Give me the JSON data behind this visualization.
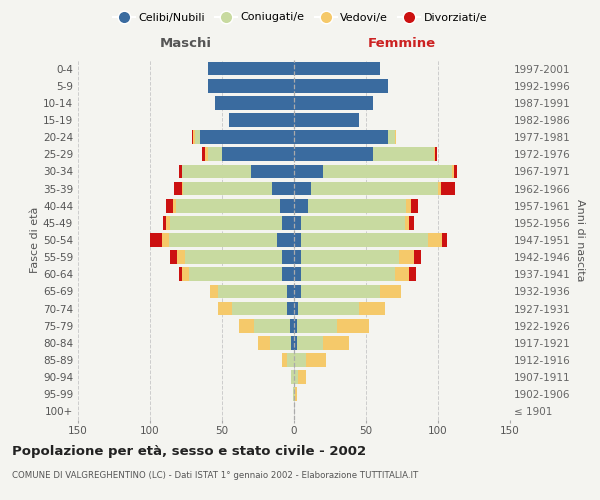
{
  "age_groups": [
    "100+",
    "95-99",
    "90-94",
    "85-89",
    "80-84",
    "75-79",
    "70-74",
    "65-69",
    "60-64",
    "55-59",
    "50-54",
    "45-49",
    "40-44",
    "35-39",
    "30-34",
    "25-29",
    "20-24",
    "15-19",
    "10-14",
    "5-9",
    "0-4"
  ],
  "birth_years": [
    "≤ 1901",
    "1902-1906",
    "1907-1911",
    "1912-1916",
    "1917-1921",
    "1922-1926",
    "1927-1931",
    "1932-1936",
    "1937-1941",
    "1942-1946",
    "1947-1951",
    "1952-1956",
    "1957-1961",
    "1962-1966",
    "1967-1971",
    "1972-1976",
    "1977-1981",
    "1982-1986",
    "1987-1991",
    "1992-1996",
    "1997-2001"
  ],
  "males_celibe": [
    0,
    0,
    0,
    0,
    2,
    3,
    5,
    5,
    8,
    8,
    12,
    8,
    10,
    15,
    30,
    50,
    65,
    45,
    55,
    60,
    60
  ],
  "males_coniugato": [
    0,
    1,
    2,
    5,
    15,
    25,
    38,
    48,
    65,
    68,
    75,
    78,
    72,
    62,
    48,
    10,
    4,
    0,
    0,
    0,
    0
  ],
  "males_vedovo": [
    0,
    0,
    0,
    3,
    8,
    10,
    10,
    5,
    5,
    5,
    5,
    3,
    2,
    1,
    0,
    2,
    1,
    0,
    0,
    0,
    0
  ],
  "males_divorziato": [
    0,
    0,
    0,
    0,
    0,
    0,
    0,
    0,
    2,
    5,
    8,
    2,
    5,
    5,
    2,
    2,
    1,
    0,
    0,
    0,
    0
  ],
  "females_nubile": [
    0,
    0,
    0,
    0,
    2,
    2,
    3,
    5,
    5,
    5,
    5,
    5,
    10,
    12,
    20,
    55,
    65,
    45,
    55,
    65,
    60
  ],
  "females_coniugata": [
    0,
    1,
    3,
    8,
    18,
    28,
    42,
    55,
    65,
    68,
    88,
    72,
    68,
    88,
    90,
    42,
    5,
    0,
    0,
    0,
    0
  ],
  "females_vedova": [
    0,
    1,
    5,
    14,
    18,
    22,
    18,
    14,
    10,
    10,
    10,
    3,
    3,
    2,
    1,
    1,
    1,
    0,
    0,
    0,
    0
  ],
  "females_divorziata": [
    0,
    0,
    0,
    0,
    0,
    0,
    0,
    0,
    5,
    5,
    3,
    3,
    5,
    10,
    2,
    1,
    0,
    0,
    0,
    0,
    0
  ],
  "color_celibe": "#3a6b9f",
  "color_coniugato": "#c8daa0",
  "color_vedovo": "#f5c96a",
  "color_divorziato": "#cc1111",
  "title": "Popolazione per età, sesso e stato civile - 2002",
  "subtitle": "COMUNE DI VALGREGHENTINO (LC) - Dati ISTAT 1° gennaio 2002 - Elaborazione TUTTITALIA.IT",
  "label_maschi": "Maschi",
  "label_femmine": "Femmine",
  "ylabel_left": "Fasce di età",
  "ylabel_right": "Anni di nascita",
  "legend_labels": [
    "Celibi/Nubili",
    "Coniugati/e",
    "Vedovi/e",
    "Divorziati/e"
  ],
  "xlim": 150,
  "bg_color": "#f4f4f0",
  "grid_color": "#cccccc"
}
